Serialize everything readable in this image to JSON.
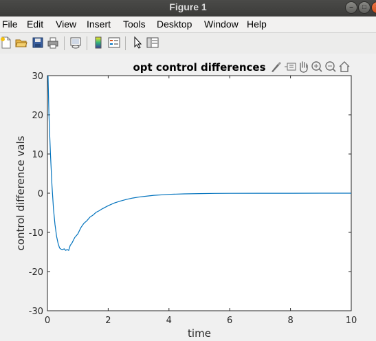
{
  "window": {
    "title": "Figure 1"
  },
  "menu": {
    "file": "File",
    "edit": "Edit",
    "view": "View",
    "insert": "Insert",
    "tools": "Tools",
    "desktop": "Desktop",
    "window": "Window",
    "help": "Help"
  },
  "toolbar_icons": [
    "new-figure-icon",
    "open-file-icon",
    "save-icon",
    "print-icon",
    "link-plot-icon",
    "colorbar-icon",
    "legend-icon",
    "edit-plot-pointer-icon",
    "property-inspector-icon"
  ],
  "axes_toolbar_icons": [
    "brush-icon",
    "data-tips-icon",
    "pan-icon",
    "zoom-in-icon",
    "zoom-out-icon",
    "home-icon"
  ],
  "colors": {
    "line": "#0072bd",
    "axes_bg": "#ffffff",
    "figure_bg": "#f0f0f0"
  },
  "chart_data": {
    "type": "line",
    "title": "opt control differences",
    "xlabel": "time",
    "ylabel": "control difference vals",
    "xlim": [
      0,
      10
    ],
    "ylim": [
      -30,
      30
    ],
    "xticks": [
      "0",
      "2",
      "4",
      "6",
      "8",
      "10"
    ],
    "yticks": [
      "-30",
      "-20",
      "-10",
      "0",
      "10",
      "20",
      "30"
    ],
    "grid": false,
    "series": [
      {
        "color": "#0072bd",
        "x": [
          0.02,
          0.05,
          0.1,
          0.15,
          0.2,
          0.25,
          0.3,
          0.35,
          0.4,
          0.45,
          0.5,
          0.55,
          0.6,
          0.65,
          0.7,
          0.75,
          0.8,
          0.9,
          1.0,
          1.1,
          1.2,
          1.3,
          1.4,
          1.5,
          1.6,
          1.7,
          1.8,
          2.0,
          2.2,
          2.4,
          2.6,
          2.8,
          3.0,
          3.2,
          3.5,
          3.8,
          4.0,
          4.5,
          5.0,
          5.5,
          6.0,
          7.0,
          8.0,
          9.0,
          10.0
        ],
        "y": [
          30,
          20,
          10,
          2,
          -4,
          -8,
          -11,
          -12.8,
          -14,
          -14.3,
          -14.4,
          -14.2,
          -14.6,
          -14.4,
          -14.6,
          -13.3,
          -12.8,
          -11.3,
          -10.4,
          -8.8,
          -7.7,
          -7.0,
          -6.1,
          -5.6,
          -4.9,
          -4.5,
          -4.0,
          -3.2,
          -2.5,
          -2.0,
          -1.6,
          -1.25,
          -1.0,
          -0.8,
          -0.55,
          -0.4,
          -0.3,
          -0.17,
          -0.1,
          -0.06,
          -0.04,
          -0.02,
          -0.01,
          0,
          0
        ]
      }
    ]
  }
}
